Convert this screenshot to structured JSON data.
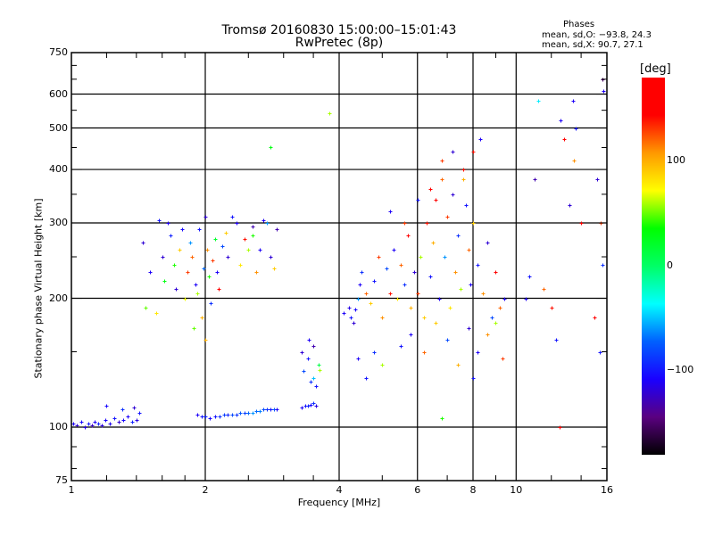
{
  "chart_data": {
    "type": "scatter",
    "title": "Tromsø 20160830 15:00:00–15:01:43",
    "subtitle": "RwPretec (8p)",
    "xlabel": "Frequency [MHz]",
    "ylabel": "Stationary phase Virtual Height [km]",
    "xscale": "log",
    "yscale": "log",
    "xlim": [
      1,
      16
    ],
    "ylim": [
      75,
      750
    ],
    "xticks": [
      1,
      2,
      4,
      6,
      8,
      10,
      16
    ],
    "xtick_labels": [
      "1",
      "2",
      "4",
      "6",
      "8",
      "10",
      "16"
    ],
    "xgrid": [
      2,
      4,
      6,
      8,
      10
    ],
    "yticks": [
      75,
      100,
      200,
      300,
      400,
      500,
      600,
      750
    ],
    "ytick_labels": [
      "75",
      "100",
      "200",
      "300",
      "400",
      "500",
      "600",
      "750"
    ],
    "ygrid": [
      100,
      200,
      300,
      400,
      500,
      600
    ],
    "grid": true,
    "stats": {
      "heading": "Phases",
      "o_line": "mean, sd,O: −93.8, 24.3",
      "x_line": "mean, sd,X:  90.7, 27.1"
    },
    "colorbar": {
      "label": "[deg]",
      "range": [
        -180,
        180
      ],
      "ticks": [
        100,
        0,
        -100
      ],
      "tick_labels": [
        "100",
        "0",
        "−100"
      ],
      "stops": [
        "#000000",
        "#5a0080",
        "#1a00ff",
        "#0060ff",
        "#00ffff",
        "#00ff66",
        "#00ff00",
        "#ffff00",
        "#ff9900",
        "#ff0000",
        "#ff0000"
      ]
    },
    "point_fields": [
      "frequency_mhz",
      "height_km",
      "phase_deg"
    ],
    "points": [
      [
        1.01,
        102,
        -110
      ],
      [
        1.03,
        101,
        -120
      ],
      [
        1.05,
        103,
        -105
      ],
      [
        1.07,
        100,
        -115
      ],
      [
        1.09,
        102,
        -100
      ],
      [
        1.11,
        101,
        -125
      ],
      [
        1.13,
        103,
        -110
      ],
      [
        1.15,
        102,
        -95
      ],
      [
        1.17,
        101,
        -118
      ],
      [
        1.19,
        104,
        -108
      ],
      [
        1.22,
        102,
        -112
      ],
      [
        1.25,
        105,
        -100
      ],
      [
        1.28,
        103,
        -120
      ],
      [
        1.31,
        104,
        -105
      ],
      [
        1.34,
        106,
        -110
      ],
      [
        1.37,
        103,
        -95
      ],
      [
        1.4,
        104,
        -115
      ],
      [
        1.42,
        108,
        -100
      ],
      [
        1.3,
        110,
        -90
      ],
      [
        1.2,
        112,
        -105
      ],
      [
        1.38,
        111,
        -120
      ],
      [
        1.92,
        107,
        -110
      ],
      [
        1.96,
        106,
        -100
      ],
      [
        2.0,
        106,
        -95
      ],
      [
        2.05,
        105,
        -105
      ],
      [
        2.1,
        106,
        -100
      ],
      [
        2.15,
        106,
        -90
      ],
      [
        2.2,
        107,
        -85
      ],
      [
        2.25,
        107,
        -95
      ],
      [
        2.3,
        107,
        -80
      ],
      [
        2.35,
        107,
        -90
      ],
      [
        2.4,
        108,
        -75
      ],
      [
        2.45,
        108,
        -85
      ],
      [
        2.5,
        108,
        -70
      ],
      [
        2.55,
        108,
        -60
      ],
      [
        2.6,
        109,
        -70
      ],
      [
        2.65,
        109,
        -65
      ],
      [
        2.7,
        110,
        -80
      ],
      [
        2.75,
        110,
        -90
      ],
      [
        2.8,
        110,
        -100
      ],
      [
        2.85,
        110,
        -75
      ],
      [
        2.9,
        110,
        -110
      ],
      [
        3.3,
        111,
        -110
      ],
      [
        3.35,
        112,
        -100
      ],
      [
        3.4,
        112,
        -95
      ],
      [
        3.45,
        113,
        -105
      ],
      [
        3.5,
        114,
        -90
      ],
      [
        3.55,
        112,
        -115
      ],
      [
        3.3,
        150,
        -120
      ],
      [
        3.32,
        135,
        -80
      ],
      [
        3.4,
        145,
        -100
      ],
      [
        3.42,
        160,
        -110
      ],
      [
        3.5,
        130,
        -50
      ],
      [
        3.55,
        125,
        -100
      ],
      [
        3.5,
        155,
        -130
      ],
      [
        3.6,
        140,
        10
      ],
      [
        3.62,
        136,
        60
      ],
      [
        3.45,
        128,
        -90
      ],
      [
        1.45,
        270,
        -120
      ],
      [
        1.47,
        190,
        50
      ],
      [
        1.5,
        230,
        -110
      ],
      [
        1.55,
        185,
        80
      ],
      [
        1.57,
        305,
        -100
      ],
      [
        1.6,
        250,
        -120
      ],
      [
        1.62,
        220,
        30
      ],
      [
        1.65,
        300,
        -110
      ],
      [
        1.67,
        280,
        -95
      ],
      [
        1.7,
        240,
        40
      ],
      [
        1.72,
        210,
        -120
      ],
      [
        1.75,
        260,
        90
      ],
      [
        1.77,
        290,
        -105
      ],
      [
        1.8,
        200,
        70
      ],
      [
        1.82,
        230,
        130
      ],
      [
        1.85,
        270,
        -60
      ],
      [
        1.87,
        250,
        120
      ],
      [
        1.9,
        215,
        -110
      ],
      [
        1.92,
        205,
        60
      ],
      [
        1.94,
        290,
        -100
      ],
      [
        1.96,
        180,
        100
      ],
      [
        1.98,
        235,
        -70
      ],
      [
        2.0,
        310,
        -120
      ],
      [
        2.02,
        260,
        110
      ],
      [
        2.04,
        225,
        40
      ],
      [
        2.06,
        195,
        -90
      ],
      [
        2.08,
        245,
        130
      ],
      [
        2.1,
        275,
        20
      ],
      [
        2.12,
        230,
        -110
      ],
      [
        2.14,
        210,
        150
      ],
      [
        2.18,
        265,
        -80
      ],
      [
        2.22,
        285,
        90
      ],
      [
        2.25,
        250,
        -120
      ],
      [
        2.3,
        310,
        -100
      ],
      [
        2.35,
        300,
        -110
      ],
      [
        2.4,
        240,
        80
      ],
      [
        2.45,
        275,
        140
      ],
      [
        2.5,
        260,
        60
      ],
      [
        2.55,
        295,
        -130
      ],
      [
        2.6,
        230,
        110
      ],
      [
        2.65,
        260,
        -110
      ],
      [
        2.7,
        305,
        -110
      ],
      [
        2.75,
        300,
        -60
      ],
      [
        2.8,
        250,
        -120
      ],
      [
        2.85,
        235,
        90
      ],
      [
        2.9,
        290,
        -130
      ],
      [
        2.55,
        280,
        40
      ],
      [
        1.88,
        170,
        50
      ],
      [
        2.0,
        160,
        100
      ],
      [
        4.1,
        185,
        -110
      ],
      [
        4.2,
        190,
        -115
      ],
      [
        4.25,
        180,
        -100
      ],
      [
        4.3,
        175,
        -120
      ],
      [
        4.35,
        188,
        -105
      ],
      [
        4.4,
        200,
        -60
      ],
      [
        4.45,
        215,
        -110
      ],
      [
        4.5,
        230,
        -90
      ],
      [
        4.6,
        205,
        120
      ],
      [
        4.7,
        195,
        90
      ],
      [
        4.8,
        220,
        -100
      ],
      [
        4.9,
        250,
        130
      ],
      [
        5.0,
        180,
        110
      ],
      [
        5.1,
        235,
        -80
      ],
      [
        5.2,
        205,
        140
      ],
      [
        5.3,
        260,
        -110
      ],
      [
        5.4,
        200,
        80
      ],
      [
        5.5,
        240,
        120
      ],
      [
        5.6,
        215,
        -90
      ],
      [
        5.7,
        280,
        160
      ],
      [
        5.8,
        190,
        100
      ],
      [
        5.9,
        230,
        -120
      ],
      [
        6.0,
        205,
        130
      ],
      [
        6.1,
        250,
        60
      ],
      [
        6.2,
        180,
        90
      ],
      [
        6.3,
        300,
        140
      ],
      [
        6.4,
        225,
        -100
      ],
      [
        6.5,
        270,
        100
      ],
      [
        6.6,
        340,
        150
      ],
      [
        6.7,
        200,
        -110
      ],
      [
        6.8,
        380,
        120
      ],
      [
        6.9,
        250,
        -60
      ],
      [
        7.0,
        310,
        130
      ],
      [
        7.1,
        190,
        80
      ],
      [
        7.2,
        350,
        -120
      ],
      [
        7.3,
        230,
        110
      ],
      [
        7.4,
        280,
        -90
      ],
      [
        7.5,
        210,
        60
      ],
      [
        7.6,
        400,
        140
      ],
      [
        7.7,
        330,
        -100
      ],
      [
        7.8,
        260,
        120
      ],
      [
        7.9,
        215,
        -110
      ],
      [
        8.0,
        300,
        90
      ],
      [
        8.2,
        240,
        -100
      ],
      [
        8.4,
        205,
        110
      ],
      [
        8.6,
        270,
        -120
      ],
      [
        8.8,
        180,
        -80
      ],
      [
        9.0,
        230,
        150
      ],
      [
        9.2,
        190,
        120
      ],
      [
        9.4,
        200,
        -110
      ],
      [
        4.4,
        145,
        -110
      ],
      [
        4.6,
        130,
        -100
      ],
      [
        4.8,
        150,
        -90
      ],
      [
        5.0,
        140,
        60
      ],
      [
        5.5,
        155,
        -100
      ],
      [
        5.8,
        165,
        -110
      ],
      [
        6.2,
        150,
        120
      ],
      [
        6.6,
        175,
        90
      ],
      [
        7.0,
        160,
        -80
      ],
      [
        7.4,
        140,
        100
      ],
      [
        7.8,
        170,
        -120
      ],
      [
        8.2,
        150,
        -110
      ],
      [
        8.6,
        165,
        110
      ],
      [
        9.0,
        175,
        60
      ],
      [
        9.3,
        145,
        130
      ],
      [
        6.8,
        105,
        40
      ],
      [
        8.0,
        130,
        -100
      ],
      [
        5.2,
        320,
        -110
      ],
      [
        5.6,
        300,
        130
      ],
      [
        6.0,
        340,
        -100
      ],
      [
        6.4,
        360,
        150
      ],
      [
        6.8,
        420,
        130
      ],
      [
        7.2,
        440,
        -120
      ],
      [
        7.6,
        380,
        100
      ],
      [
        8.0,
        440,
        140
      ],
      [
        8.3,
        470,
        -110
      ],
      [
        3.8,
        540,
        60
      ],
      [
        2.8,
        450,
        30
      ],
      [
        10.5,
        200,
        -110
      ],
      [
        10.7,
        225,
        -100
      ],
      [
        11.0,
        380,
        -130
      ],
      [
        11.2,
        580,
        -40
      ],
      [
        11.5,
        210,
        120
      ],
      [
        12.0,
        190,
        140
      ],
      [
        12.3,
        160,
        -100
      ],
      [
        12.5,
        100,
        150
      ],
      [
        12.6,
        520,
        -110
      ],
      [
        12.8,
        470,
        160
      ],
      [
        13.2,
        330,
        -120
      ],
      [
        13.4,
        580,
        -110
      ],
      [
        13.5,
        420,
        110
      ],
      [
        13.6,
        500,
        -100
      ],
      [
        14.0,
        300,
        160
      ],
      [
        15.2,
        380,
        -120
      ],
      [
        15.6,
        650,
        -150
      ],
      [
        15.7,
        610,
        -110
      ],
      [
        15.5,
        300,
        130
      ],
      [
        15.4,
        150,
        -100
      ],
      [
        15.6,
        240,
        -90
      ],
      [
        15.0,
        180,
        160
      ]
    ]
  }
}
